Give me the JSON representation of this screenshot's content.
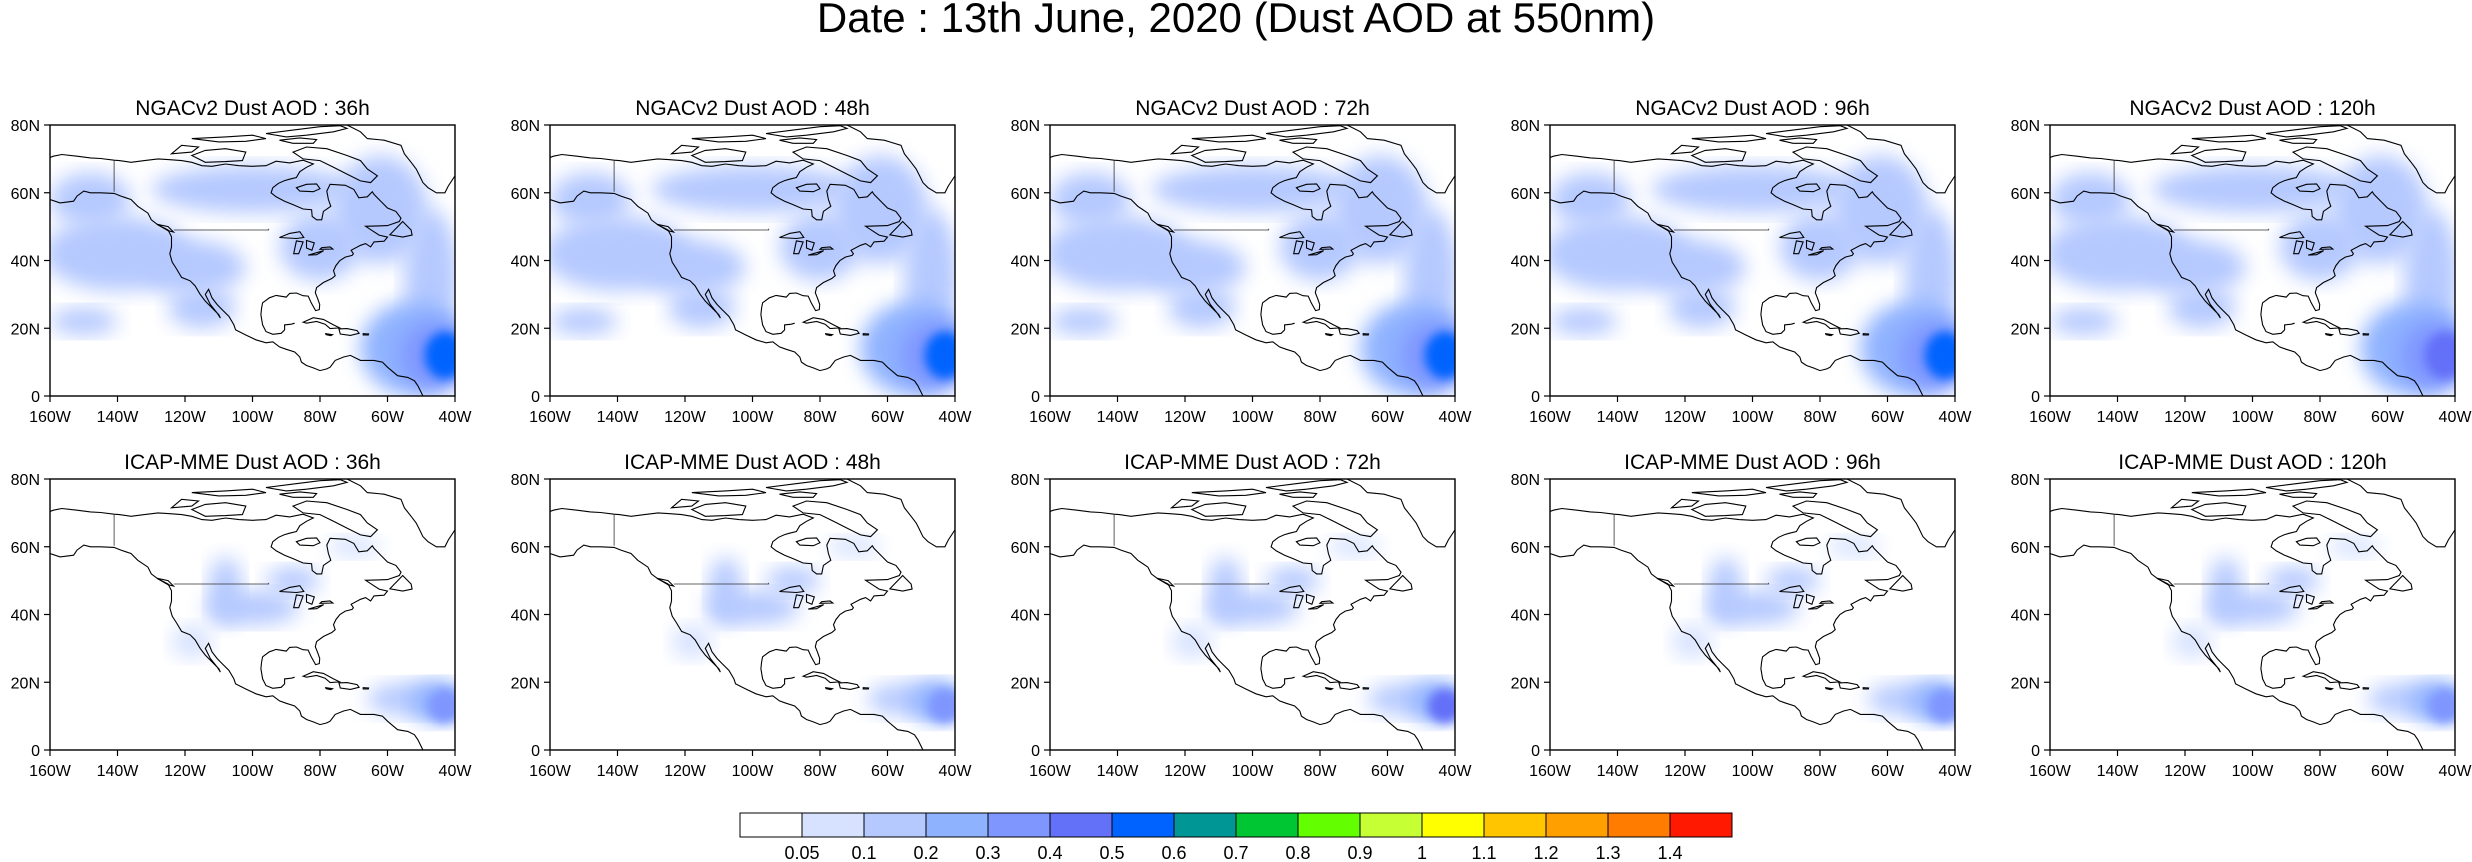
{
  "title": "Date : 13th June, 2020 (Dust AOD at 550nm)",
  "chart_data": {
    "type": "heatmap",
    "title": "Date : 13th June, 2020 (Dust AOD at 550nm)",
    "lon_range": [
      -160,
      -40
    ],
    "lat_range": [
      0,
      80
    ],
    "x_ticks": [
      -160,
      -140,
      -120,
      -100,
      -80,
      -60,
      -40
    ],
    "x_tick_labels": [
      "160W",
      "140W",
      "120W",
      "100W",
      "80W",
      "60W",
      "40W"
    ],
    "y_ticks": [
      0,
      20,
      40,
      60,
      80
    ],
    "y_tick_labels": [
      "0",
      "20N",
      "40N",
      "60N",
      "80N"
    ],
    "panels": [
      {
        "title": "NGACv2 Dust AOD : 36h",
        "model": "NGACv2",
        "lead": "36h",
        "saharan_peak_aod": 0.5,
        "pacific_band_aod": 0.1,
        "broad_cover": true
      },
      {
        "title": "NGACv2 Dust AOD : 48h",
        "model": "NGACv2",
        "lead": "48h",
        "saharan_peak_aod": 0.5,
        "pacific_band_aod": 0.1,
        "broad_cover": true
      },
      {
        "title": "NGACv2 Dust AOD : 72h",
        "model": "NGACv2",
        "lead": "72h",
        "saharan_peak_aod": 0.5,
        "pacific_band_aod": 0.1,
        "broad_cover": true
      },
      {
        "title": "NGACv2 Dust AOD : 96h",
        "model": "NGACv2",
        "lead": "96h",
        "saharan_peak_aod": 0.5,
        "pacific_band_aod": 0.1,
        "broad_cover": true
      },
      {
        "title": "NGACv2 Dust AOD : 120h",
        "model": "NGACv2",
        "lead": "120h",
        "saharan_peak_aod": 0.4,
        "pacific_band_aod": 0.1,
        "broad_cover": true
      },
      {
        "title": "ICAP-MME Dust AOD : 36h",
        "model": "ICAP-MME",
        "lead": "36h",
        "saharan_peak_aod": 0.3,
        "pacific_band_aod": 0.05,
        "broad_cover": false
      },
      {
        "title": "ICAP-MME Dust AOD : 48h",
        "model": "ICAP-MME",
        "lead": "48h",
        "saharan_peak_aod": 0.3,
        "pacific_band_aod": 0.05,
        "broad_cover": false
      },
      {
        "title": "ICAP-MME Dust AOD : 72h",
        "model": "ICAP-MME",
        "lead": "72h",
        "saharan_peak_aod": 0.4,
        "pacific_band_aod": 0.05,
        "broad_cover": false
      },
      {
        "title": "ICAP-MME Dust AOD : 96h",
        "model": "ICAP-MME",
        "lead": "96h",
        "saharan_peak_aod": 0.3,
        "pacific_band_aod": 0.05,
        "broad_cover": false
      },
      {
        "title": "ICAP-MME Dust AOD : 120h",
        "model": "ICAP-MME",
        "lead": "120h",
        "saharan_peak_aod": 0.3,
        "pacific_band_aod": 0.05,
        "broad_cover": false
      }
    ],
    "colorbar": {
      "labels": [
        "0.05",
        "0.1",
        "0.2",
        "0.3",
        "0.4",
        "0.5",
        "0.6",
        "0.7",
        "0.8",
        "0.9",
        "1",
        "1.1",
        "1.2",
        "1.3",
        "1.4"
      ],
      "colors": [
        "#ffffff",
        "#d6e2ff",
        "#b5c9ff",
        "#8fb2ff",
        "#7f96ff",
        "#6370f8",
        "#0063ff",
        "#009696",
        "#00c633",
        "#63ff00",
        "#c6ff33",
        "#ffff00",
        "#ffc600",
        "#ffa000",
        "#ff7c00",
        "#ff1900"
      ]
    }
  }
}
